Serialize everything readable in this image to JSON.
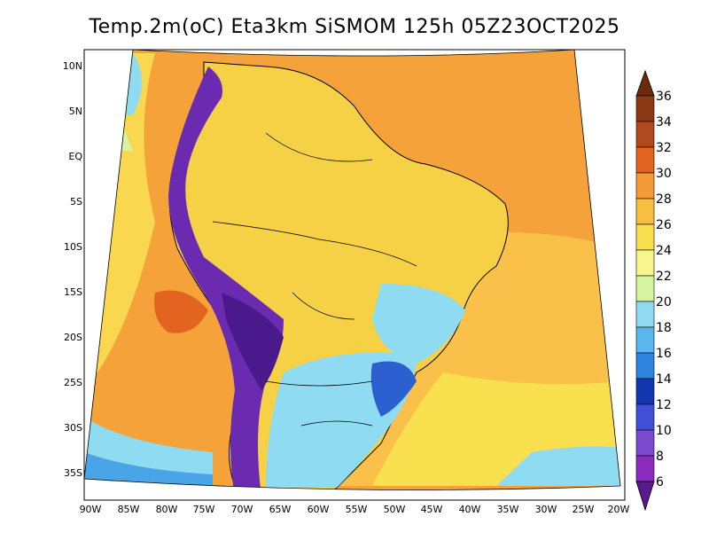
{
  "title": "Temp.2m(oC) Eta3km SiSMOM 125h 05Z23OCT2025",
  "axes": {
    "y_labels": [
      "10N",
      "5N",
      "EQ",
      "5S",
      "10S",
      "15S",
      "20S",
      "25S",
      "30S",
      "35S"
    ],
    "x_labels": [
      "90W",
      "85W",
      "80W",
      "75W",
      "70W",
      "65W",
      "60W",
      "55W",
      "50W",
      "45W",
      "40W",
      "35W",
      "30W",
      "25W",
      "20W"
    ]
  },
  "colorbar": {
    "labels": [
      "36",
      "34",
      "32",
      "30",
      "28",
      "26",
      "24",
      "22",
      "20",
      "18",
      "16",
      "14",
      "12",
      "10",
      "8",
      "6"
    ],
    "colors": [
      "#6b2b0b",
      "#8c3a14",
      "#b04a1c",
      "#e26420",
      "#f59a38",
      "#f8bf3d",
      "#f9e04f",
      "#f9f58d",
      "#d6f5a0",
      "#8fdcf2",
      "#5ab7ee",
      "#2c84e0",
      "#1236b0",
      "#3f4fd8",
      "#7c48d0",
      "#8c2cbf",
      "#5a1a8c"
    ]
  },
  "map": {
    "ocean_color": "#f5a23a",
    "land_color": "#f6d146",
    "andes_color": "#6a2bb0",
    "south_cool_color": "#4aa4e8"
  }
}
